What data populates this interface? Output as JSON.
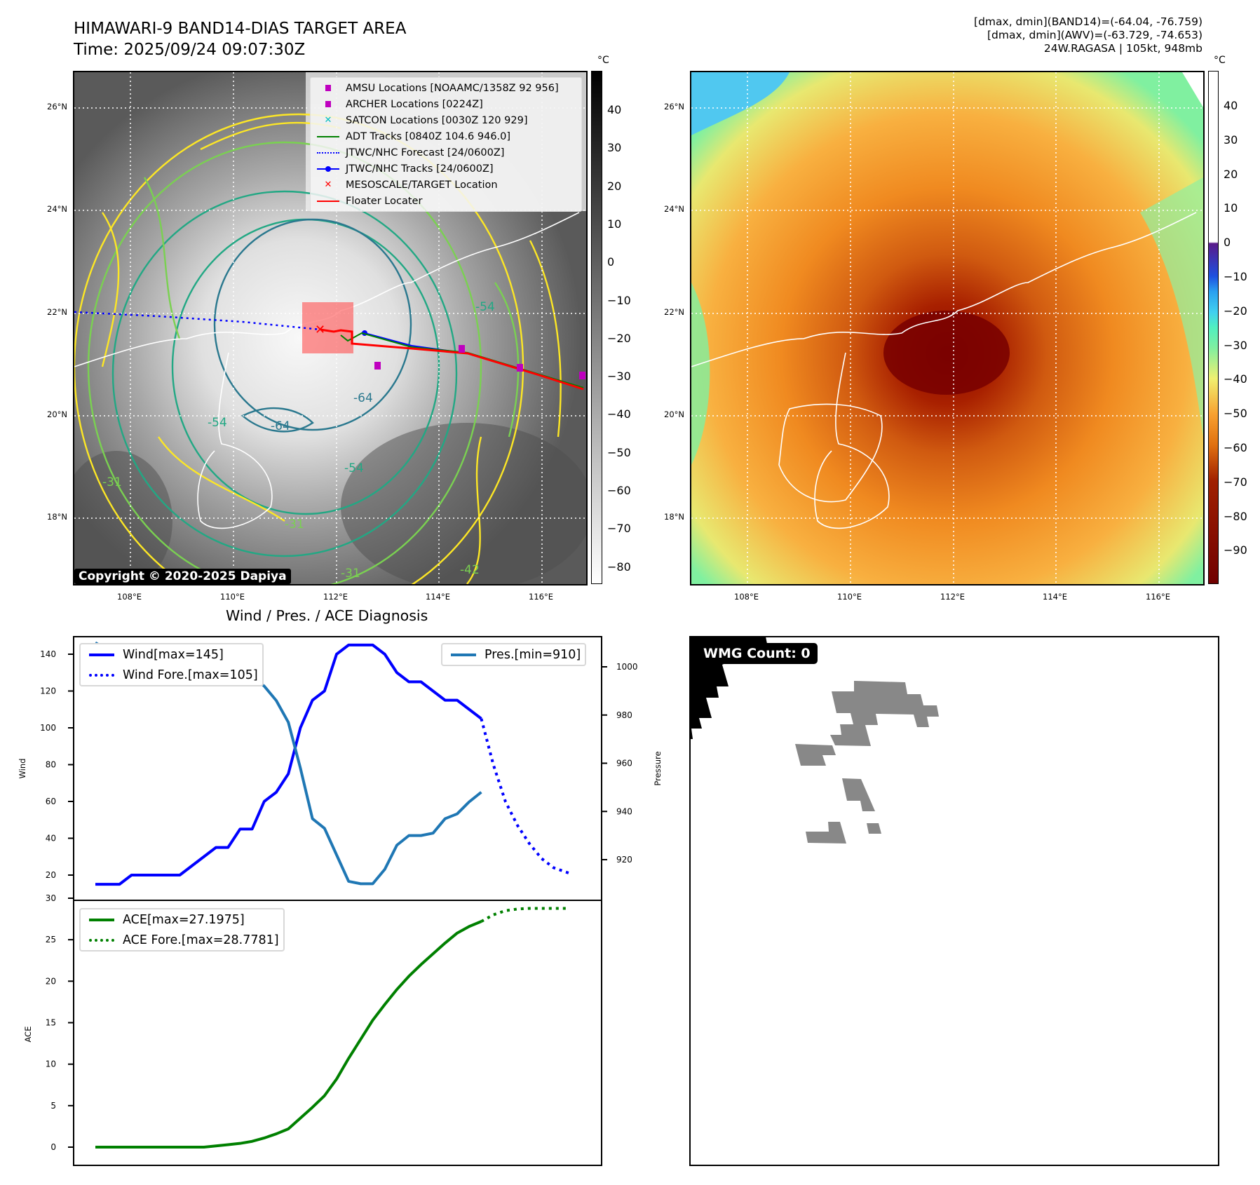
{
  "header": {
    "title_line1": "HIMAWARI-9 BAND14-DIAS TARGET AREA",
    "title_line2": "Time: 2025/09/24 09:07:30Z",
    "info_line1": "[dmax, dmin](BAND14)=(-64.04, -76.759)",
    "info_line2": "[dmax, dmin](AWV)=(-63.729, -74.653)",
    "info_line3": "24W.RAGASA | 105kt, 948mb"
  },
  "map": {
    "lat_labels": [
      "26°N",
      "24°N",
      "22°N",
      "20°N",
      "18°N"
    ],
    "lon_labels": [
      "108°E",
      "110°E",
      "112°E",
      "114°E",
      "116°E"
    ],
    "contour_labels": [
      "-64",
      "-64",
      "-54",
      "-54",
      "-54",
      "-31",
      "-31",
      "-31",
      "-42"
    ],
    "copyright": "Copyright © 2020-2025 Dapiya",
    "legend": [
      {
        "label": "AMSU Locations [NOAAMC/1358Z 92 956]",
        "icon": "square-marker",
        "color": "#bf00bf"
      },
      {
        "label": "ARCHER Locations [0224Z]",
        "icon": "square-marker",
        "color": "#bf00bf"
      },
      {
        "label": "SATCON Locations [0030Z 120 929]",
        "icon": "x-marker",
        "color": "#00bfbf"
      },
      {
        "label": "ADT Tracks [0840Z 104.6 946.0]",
        "icon": "solid-line",
        "color": "#008000"
      },
      {
        "label": "JTWC/NHC Forecast [24/0600Z]",
        "icon": "dotted-line",
        "color": "#0000ff"
      },
      {
        "label": "JTWC/NHC Tracks [24/0600Z]",
        "icon": "line-dot",
        "color": "#0000ff"
      },
      {
        "label": "MESOSCALE/TARGET Location",
        "icon": "x-marker",
        "color": "#ff0000"
      },
      {
        "label": "Floater Locater",
        "icon": "solid-line",
        "color": "#ff0000"
      }
    ]
  },
  "colorbar_left": {
    "unit": "°C",
    "ticks": [
      "40",
      "30",
      "20",
      "10",
      "0",
      "−10",
      "−20",
      "−30",
      "−40",
      "−50",
      "−60",
      "−70",
      "−80"
    ]
  },
  "colorbar_right": {
    "unit": "°C",
    "ticks": [
      "40",
      "30",
      "20",
      "10",
      "0",
      "−10",
      "−20",
      "−30",
      "−40",
      "−50",
      "−60",
      "−70",
      "−80",
      "−90"
    ]
  },
  "chart_data": [
    {
      "type": "line",
      "title": "Wind / Pres. / ACE Diagnosis",
      "ylabel": "Wind",
      "y2label": "Pressure",
      "ylim": [
        10,
        152
      ],
      "y2lim": [
        908,
        1012
      ],
      "yticks": [
        20,
        40,
        60,
        80,
        100,
        120,
        140
      ],
      "y2ticks": [
        920,
        940,
        960,
        980,
        1000
      ],
      "series": [
        {
          "name": "Wind[max=145]",
          "color": "#0000ff",
          "style": "solid",
          "values": [
            15,
            15,
            15,
            20,
            20,
            20,
            20,
            20,
            25,
            30,
            35,
            35,
            45,
            45,
            60,
            65,
            75,
            100,
            115,
            120,
            140,
            145,
            145,
            145,
            140,
            130,
            125,
            125,
            120,
            115,
            115,
            110,
            105
          ]
        },
        {
          "name": "Wind Fore.[max=105]",
          "color": "#0000ff",
          "style": "dotted",
          "points": [
            [
              32,
              105
            ],
            [
              33,
              80
            ],
            [
              34,
              60
            ],
            [
              35,
              47
            ],
            [
              36,
              37
            ],
            [
              37,
              29
            ],
            [
              38,
              24
            ],
            [
              39.3,
              21
            ]
          ]
        },
        {
          "name": "Pres.[min=910]",
          "color": "#1f77b4",
          "style": "solid",
          "axis": "right",
          "values": [
            1010,
            1007,
            1007,
            1007,
            1008,
            1008,
            1008,
            1007,
            1006,
            1005,
            1004,
            1000,
            998,
            996,
            992,
            986,
            977,
            958,
            937,
            933,
            922,
            911,
            910,
            910,
            916,
            926,
            930,
            930,
            931,
            937,
            939,
            944,
            948
          ]
        }
      ]
    },
    {
      "type": "line",
      "ylabel": "ACE",
      "ylim": [
        -3,
        30
      ],
      "yticks": [
        0,
        5,
        10,
        15,
        20,
        25,
        30
      ],
      "series": [
        {
          "name": "ACE[max=27.1975]",
          "color": "#008000",
          "style": "solid",
          "values": [
            0,
            0,
            0,
            0,
            0,
            0,
            0,
            0,
            0,
            0,
            0.15,
            0.3,
            0.45,
            0.7,
            1.1,
            1.6,
            2.2,
            3.5,
            4.8,
            6.2,
            8.2,
            10.7,
            13,
            15.3,
            17.2,
            19,
            20.6,
            22,
            23.3,
            24.6,
            25.8,
            26.6,
            27.2
          ]
        },
        {
          "name": "ACE Fore.[max=28.7781]",
          "color": "#008000",
          "style": "dotted",
          "points": [
            [
              32,
              27.2
            ],
            [
              33,
              28.0
            ],
            [
              34,
              28.5
            ],
            [
              35,
              28.7
            ],
            [
              36,
              28.78
            ],
            [
              39.3,
              28.78
            ]
          ]
        }
      ]
    }
  ],
  "wmg": {
    "label": "WMG Count: 0"
  }
}
